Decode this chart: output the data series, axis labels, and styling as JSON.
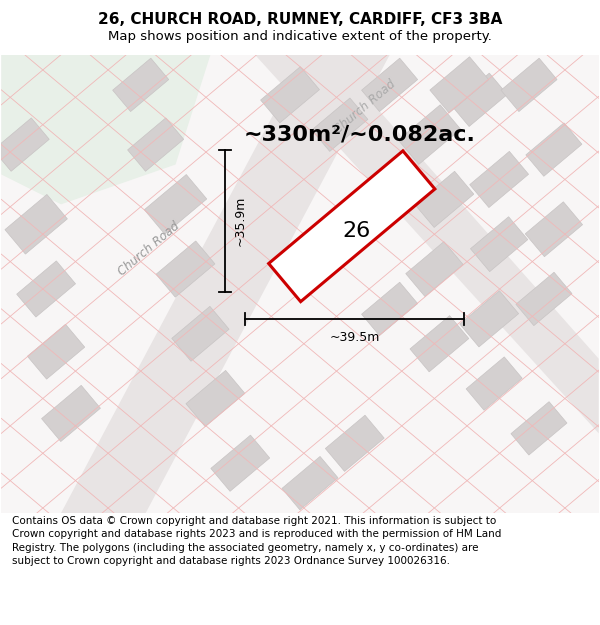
{
  "title": "26, CHURCH ROAD, RUMNEY, CARDIFF, CF3 3BA",
  "subtitle": "Map shows position and indicative extent of the property.",
  "footer": "Contains OS data © Crown copyright and database right 2021. This information is subject to Crown copyright and database rights 2023 and is reproduced with the permission of HM Land Registry. The polygons (including the associated geometry, namely x, y co-ordinates) are subject to Crown copyright and database rights 2023 Ordnance Survey 100026316.",
  "area_label": "~330m²/~0.082ac.",
  "width_label": "~39.5m",
  "height_label": "~35.9m",
  "property_number": "26",
  "road_label_lower": "Church Road",
  "road_label_upper": "Church Road",
  "map_bg": "#f8f6f6",
  "green_color": "#e8f0e8",
  "plot_edge_color": "#cc0000",
  "plot_fill_color": "#fff0f0",
  "cadastral_color": "#f0b8b8",
  "road_fill_color": "#e8e4e4",
  "building_color": "#d4d0d0",
  "building_edge_color": "#c8c4c4",
  "title_fontsize": 11,
  "subtitle_fontsize": 9.5,
  "footer_fontsize": 7.5,
  "area_fontsize": 16,
  "number_fontsize": 16,
  "dim_fontsize": 9,
  "road_label_fontsize": 8.5
}
